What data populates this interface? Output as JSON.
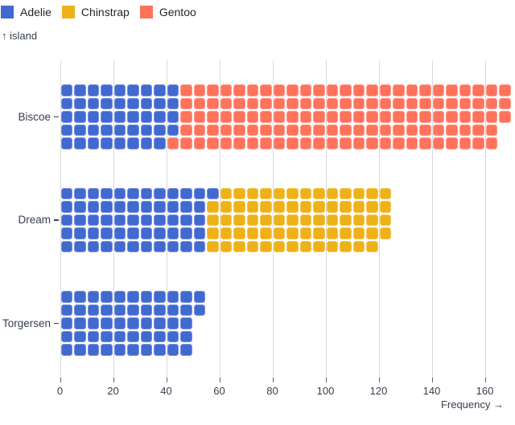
{
  "legend": {
    "items": [
      {
        "label": "Adelie",
        "color": "#4269d0"
      },
      {
        "label": "Chinstrap",
        "color": "#efb118"
      },
      {
        "label": "Gentoo",
        "color": "#ff725c"
      }
    ]
  },
  "y_axis_title": "↑ island",
  "x_axis_title": "Frequency →",
  "chart_data": {
    "type": "bar",
    "subtype": "waffle-unit-chart",
    "orientation": "horizontal",
    "title": "",
    "xlabel": "Frequency",
    "ylabel": "island",
    "categories": [
      "Biscoe",
      "Dream",
      "Torgersen"
    ],
    "series": [
      {
        "name": "Adelie",
        "color": "#4269d0",
        "values": [
          44,
          56,
          52
        ]
      },
      {
        "name": "Chinstrap",
        "color": "#efb118",
        "values": [
          0,
          68,
          0
        ]
      },
      {
        "name": "Gentoo",
        "color": "#ff725c",
        "values": [
          124,
          0,
          0
        ]
      }
    ],
    "totals": [
      168,
      124,
      52
    ],
    "unit_per_cell": 1,
    "cells_per_column": 5,
    "x_ticks": [
      0,
      20,
      40,
      60,
      80,
      100,
      120,
      140,
      160
    ],
    "xlim": [
      0,
      171
    ],
    "grid": true,
    "legend_position": "top-left",
    "colors": {
      "gridline": "#d8dadd",
      "axis_text": "#363e4a",
      "legend_text": "#21262e",
      "background": "#ffffff"
    }
  }
}
